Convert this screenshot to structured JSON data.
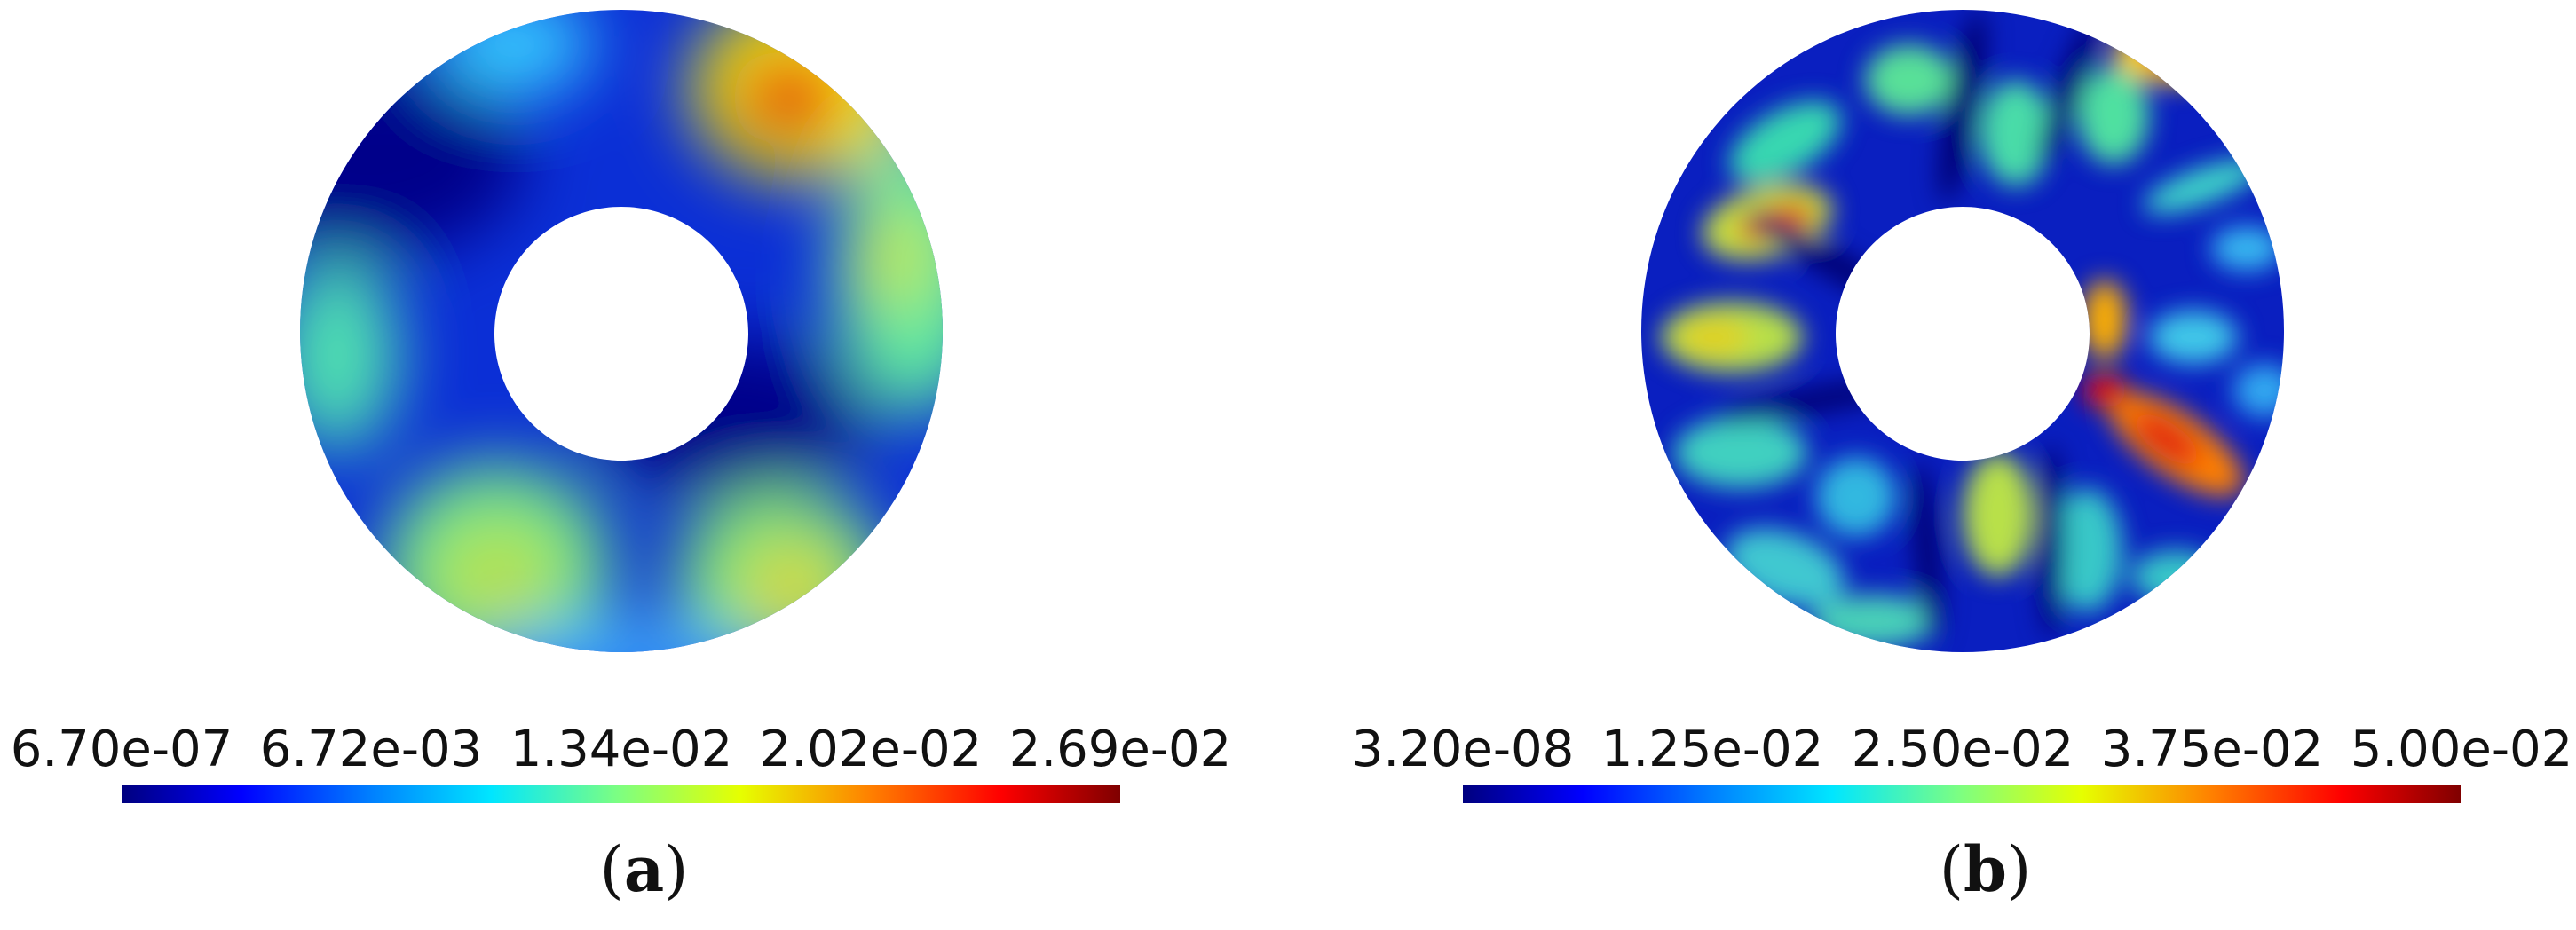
{
  "panels": [
    {
      "id": "a",
      "colorbar_ticks": [
        "6.70e-07",
        "6.72e-03",
        "1.34e-02",
        "2.02e-02",
        "2.69e-02"
      ],
      "caption_letter": "a",
      "colormap": "jet"
    },
    {
      "id": "b",
      "colorbar_ticks": [
        "3.20e-08",
        "1.25e-02",
        "2.50e-02",
        "3.75e-02",
        "5.00e-02"
      ],
      "caption_letter": "b",
      "colormap": "jet"
    }
  ],
  "colors": {
    "dark_blue": "#00007f",
    "blue": "#0000ff",
    "cyan": "#00e6ff",
    "green": "#7fff7f",
    "yellow": "#e6ff00",
    "orange": "#ff8000",
    "red": "#ff0000",
    "dark_red": "#7f0000"
  }
}
